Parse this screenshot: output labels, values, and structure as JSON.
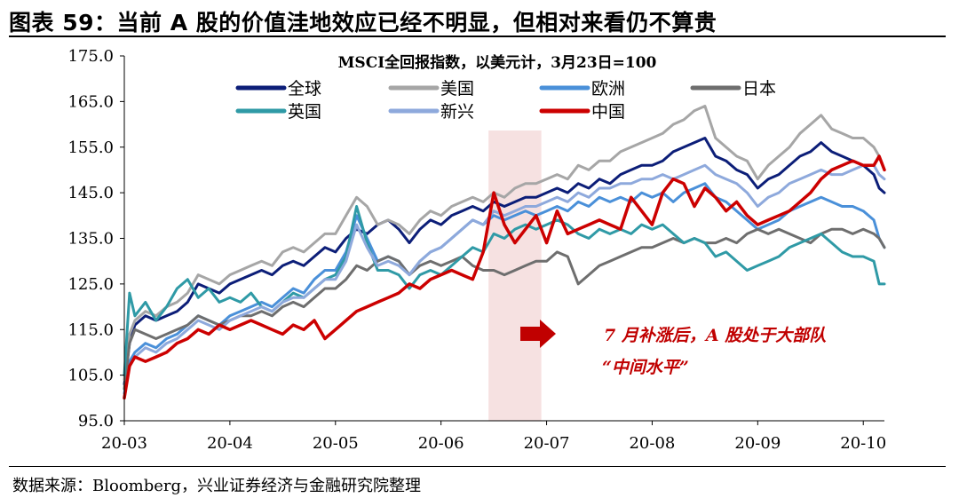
{
  "figure": {
    "title": "图表 59：当前 A 股的价值洼地效应已经不明显，但相对来看仍不算贵",
    "source": "数据来源：Bloomberg，兴业证券经济与金融研究院整理"
  },
  "chart_data": {
    "type": "line",
    "title": "MSCI全回报指数，以美元计，3月23日=100",
    "xlabel": "",
    "ylabel": "",
    "ylim": [
      95,
      175
    ],
    "yticks": [
      "95.0",
      "105.0",
      "115.0",
      "125.0",
      "135.0",
      "145.0",
      "155.0",
      "165.0",
      "175.0"
    ],
    "xlim": [
      0,
      7.2
    ],
    "xtick_values": [
      0,
      1,
      2,
      3,
      4,
      5,
      6,
      7
    ],
    "xticks": [
      "20-03",
      "20-04",
      "20-05",
      "20-06",
      "20-07",
      "20-08",
      "20-09",
      "20-10"
    ],
    "grid": false,
    "legend": "top, inside plot, 4 columns",
    "shaded_region": {
      "x_start": 3.45,
      "x_end": 3.95,
      "color": "#f6e1e1"
    },
    "annotation": {
      "line1": "7 月补涨后，A 股处于大部队",
      "line2": "“中间水平”",
      "color": "#c00000"
    },
    "series": [
      {
        "name": "全球",
        "color": "#0c1e78",
        "x": [
          0,
          0.05,
          0.1,
          0.2,
          0.3,
          0.4,
          0.5,
          0.6,
          0.7,
          0.8,
          0.9,
          1,
          1.1,
          1.2,
          1.3,
          1.4,
          1.5,
          1.6,
          1.7,
          1.8,
          1.9,
          2,
          2.1,
          2.2,
          2.3,
          2.4,
          2.5,
          2.6,
          2.7,
          2.8,
          2.9,
          3,
          3.1,
          3.2,
          3.3,
          3.4,
          3.5,
          3.6,
          3.7,
          3.8,
          3.9,
          4,
          4.1,
          4.2,
          4.3,
          4.4,
          4.5,
          4.6,
          4.7,
          4.8,
          4.9,
          5,
          5.1,
          5.2,
          5.3,
          5.4,
          5.5,
          5.6,
          5.7,
          5.8,
          5.9,
          6,
          6.1,
          6.2,
          6.3,
          6.4,
          6.5,
          6.6,
          6.7,
          6.8,
          6.9,
          7,
          7.1,
          7.15,
          7.2
        ],
        "values": [
          103,
          112,
          116,
          118,
          117,
          118,
          119,
          121,
          125,
          124,
          123,
          125,
          126,
          127,
          128,
          127,
          129,
          130,
          129,
          131,
          133,
          132,
          135,
          137,
          136,
          138,
          139,
          137,
          134,
          137,
          139,
          138,
          140,
          141,
          142,
          141,
          143,
          142,
          143,
          144,
          144,
          145,
          146,
          145,
          147,
          146,
          148,
          147,
          149,
          150,
          151,
          151,
          152,
          154,
          155,
          156,
          157,
          153,
          152,
          150,
          149,
          146,
          148,
          149,
          151,
          153,
          154,
          156,
          154,
          153,
          152,
          151,
          149,
          146,
          145
        ]
      },
      {
        "name": "美国",
        "color": "#a6a6a6",
        "x": [
          0,
          0.05,
          0.1,
          0.2,
          0.3,
          0.4,
          0.5,
          0.6,
          0.7,
          0.8,
          0.9,
          1,
          1.1,
          1.2,
          1.3,
          1.4,
          1.5,
          1.6,
          1.7,
          1.8,
          1.9,
          2,
          2.1,
          2.2,
          2.3,
          2.4,
          2.5,
          2.6,
          2.7,
          2.8,
          2.9,
          3,
          3.1,
          3.2,
          3.3,
          3.4,
          3.5,
          3.6,
          3.7,
          3.8,
          3.9,
          4,
          4.1,
          4.2,
          4.3,
          4.4,
          4.5,
          4.6,
          4.7,
          4.8,
          4.9,
          5,
          5.1,
          5.2,
          5.3,
          5.4,
          5.5,
          5.6,
          5.7,
          5.8,
          5.9,
          6,
          6.1,
          6.2,
          6.3,
          6.4,
          6.5,
          6.6,
          6.7,
          6.8,
          6.9,
          7,
          7.1,
          7.15,
          7.2
        ],
        "values": [
          104,
          114,
          117,
          119,
          118,
          120,
          121,
          123,
          127,
          126,
          125,
          127,
          128,
          129,
          130,
          129,
          132,
          133,
          132,
          134,
          136,
          136,
          140,
          144,
          142,
          138,
          139,
          138,
          136,
          139,
          141,
          140,
          142,
          143,
          144,
          143,
          145,
          144,
          146,
          147,
          147,
          148,
          149,
          148,
          151,
          150,
          152,
          152,
          154,
          155,
          156,
          157,
          158,
          160,
          161,
          163,
          164,
          157,
          155,
          153,
          152,
          148,
          151,
          153,
          155,
          158,
          160,
          162,
          159,
          158,
          157,
          157,
          155,
          153,
          150
        ]
      },
      {
        "name": "欧洲",
        "color": "#4a90d9",
        "x": [
          0,
          0.05,
          0.1,
          0.2,
          0.3,
          0.4,
          0.5,
          0.6,
          0.7,
          0.8,
          0.9,
          1,
          1.1,
          1.2,
          1.3,
          1.4,
          1.5,
          1.6,
          1.7,
          1.8,
          1.9,
          2,
          2.1,
          2.2,
          2.3,
          2.4,
          2.5,
          2.6,
          2.7,
          2.8,
          2.9,
          3,
          3.1,
          3.2,
          3.3,
          3.4,
          3.5,
          3.6,
          3.7,
          3.8,
          3.9,
          4,
          4.1,
          4.2,
          4.3,
          4.4,
          4.5,
          4.6,
          4.7,
          4.8,
          4.9,
          5,
          5.1,
          5.2,
          5.3,
          5.4,
          5.5,
          5.6,
          5.7,
          5.8,
          5.9,
          6,
          6.1,
          6.2,
          6.3,
          6.4,
          6.5,
          6.6,
          6.7,
          6.8,
          6.9,
          7,
          7.1,
          7.15,
          7.2
        ],
        "values": [
          101,
          108,
          110,
          112,
          111,
          113,
          114,
          116,
          118,
          117,
          116,
          118,
          119,
          120,
          121,
          120,
          122,
          124,
          123,
          126,
          128,
          128,
          132,
          140,
          135,
          130,
          131,
          130,
          127,
          130,
          132,
          133,
          135,
          137,
          139,
          138,
          140,
          139,
          140,
          141,
          140,
          141,
          142,
          141,
          143,
          142,
          144,
          143,
          144,
          143,
          145,
          144,
          145,
          143,
          145,
          146,
          147,
          144,
          143,
          141,
          139,
          137,
          138,
          139,
          141,
          142,
          143,
          144,
          143,
          142,
          142,
          141,
          139,
          135,
          133
        ]
      },
      {
        "name": "日本",
        "color": "#6e6e6e",
        "x": [
          0,
          0.05,
          0.1,
          0.2,
          0.3,
          0.4,
          0.5,
          0.6,
          0.7,
          0.8,
          0.9,
          1,
          1.1,
          1.2,
          1.3,
          1.4,
          1.5,
          1.6,
          1.7,
          1.8,
          1.9,
          2,
          2.1,
          2.2,
          2.3,
          2.4,
          2.5,
          2.6,
          2.7,
          2.8,
          2.9,
          3,
          3.1,
          3.2,
          3.3,
          3.4,
          3.5,
          3.6,
          3.7,
          3.8,
          3.9,
          4,
          4.1,
          4.2,
          4.3,
          4.4,
          4.5,
          4.6,
          4.7,
          4.8,
          4.9,
          5,
          5.1,
          5.2,
          5.3,
          5.4,
          5.5,
          5.6,
          5.7,
          5.8,
          5.9,
          6,
          6.1,
          6.2,
          6.3,
          6.4,
          6.5,
          6.6,
          6.7,
          6.8,
          6.9,
          7,
          7.1,
          7.15,
          7.2
        ],
        "values": [
          102,
          112,
          115,
          114,
          113,
          114,
          115,
          116,
          118,
          117,
          116,
          117,
          118,
          118,
          119,
          118,
          120,
          121,
          120,
          122,
          124,
          124,
          126,
          129,
          128,
          130,
          131,
          130,
          127,
          129,
          130,
          129,
          130,
          131,
          129,
          128,
          128,
          127,
          128,
          129,
          130,
          130,
          132,
          131,
          125,
          127,
          129,
          130,
          131,
          132,
          133,
          133,
          134,
          135,
          134,
          135,
          134,
          134,
          135,
          134,
          136,
          137,
          136,
          137,
          136,
          135,
          134,
          136,
          137,
          137,
          136,
          137,
          136,
          135,
          133
        ]
      },
      {
        "name": "英国",
        "color": "#2f9aa6",
        "x": [
          0,
          0.05,
          0.1,
          0.2,
          0.3,
          0.4,
          0.5,
          0.6,
          0.7,
          0.8,
          0.9,
          1,
          1.1,
          1.2,
          1.3,
          1.4,
          1.5,
          1.6,
          1.7,
          1.8,
          1.9,
          2,
          2.1,
          2.2,
          2.3,
          2.4,
          2.5,
          2.6,
          2.7,
          2.8,
          2.9,
          3,
          3.1,
          3.2,
          3.3,
          3.4,
          3.5,
          3.6,
          3.7,
          3.8,
          3.9,
          4,
          4.1,
          4.2,
          4.3,
          4.4,
          4.5,
          4.6,
          4.7,
          4.8,
          4.9,
          5,
          5.1,
          5.2,
          5.3,
          5.4,
          5.5,
          5.6,
          5.7,
          5.8,
          5.9,
          6,
          6.1,
          6.2,
          6.3,
          6.4,
          6.5,
          6.6,
          6.7,
          6.8,
          6.9,
          7,
          7.1,
          7.15,
          7.2
        ],
        "values": [
          105,
          123,
          118,
          121,
          117,
          120,
          124,
          126,
          122,
          124,
          121,
          122,
          121,
          123,
          120,
          119,
          121,
          123,
          122,
          124,
          126,
          127,
          131,
          142,
          134,
          128,
          128,
          127,
          124,
          127,
          128,
          127,
          129,
          131,
          133,
          132,
          136,
          135,
          137,
          138,
          137,
          138,
          139,
          138,
          136,
          135,
          137,
          136,
          137,
          136,
          138,
          137,
          138,
          136,
          134,
          135,
          134,
          131,
          132,
          130,
          128,
          129,
          130,
          131,
          133,
          134,
          135,
          136,
          134,
          132,
          131,
          131,
          130,
          125,
          125
        ]
      },
      {
        "name": "新兴",
        "color": "#8ea9dc",
        "x": [
          0,
          0.05,
          0.1,
          0.2,
          0.3,
          0.4,
          0.5,
          0.6,
          0.7,
          0.8,
          0.9,
          1,
          1.1,
          1.2,
          1.3,
          1.4,
          1.5,
          1.6,
          1.7,
          1.8,
          1.9,
          2,
          2.1,
          2.2,
          2.3,
          2.4,
          2.5,
          2.6,
          2.7,
          2.8,
          2.9,
          3,
          3.1,
          3.2,
          3.3,
          3.4,
          3.5,
          3.6,
          3.7,
          3.8,
          3.9,
          4,
          4.1,
          4.2,
          4.3,
          4.4,
          4.5,
          4.6,
          4.7,
          4.8,
          4.9,
          5,
          5.1,
          5.2,
          5.3,
          5.4,
          5.5,
          5.6,
          5.7,
          5.8,
          5.9,
          6,
          6.1,
          6.2,
          6.3,
          6.4,
          6.5,
          6.6,
          6.7,
          6.8,
          6.9,
          7,
          7.1,
          7.15,
          7.2
        ],
        "values": [
          100,
          107,
          109,
          111,
          110,
          112,
          113,
          115,
          117,
          116,
          115,
          117,
          118,
          119,
          120,
          119,
          121,
          122,
          122,
          124,
          126,
          126,
          130,
          138,
          133,
          129,
          130,
          129,
          127,
          130,
          132,
          133,
          135,
          137,
          139,
          138,
          141,
          140,
          141,
          142,
          142,
          143,
          144,
          143,
          145,
          144,
          146,
          146,
          147,
          147,
          148,
          148,
          149,
          148,
          149,
          150,
          151,
          149,
          148,
          147,
          145,
          142,
          144,
          145,
          147,
          148,
          149,
          150,
          149,
          149,
          150,
          151,
          151,
          149,
          148
        ]
      },
      {
        "name": "中国",
        "color": "#cc0000",
        "x": [
          0,
          0.05,
          0.1,
          0.2,
          0.3,
          0.4,
          0.5,
          0.6,
          0.7,
          0.8,
          0.9,
          1,
          1.1,
          1.2,
          1.3,
          1.4,
          1.5,
          1.6,
          1.7,
          1.8,
          1.9,
          2,
          2.1,
          2.2,
          2.3,
          2.4,
          2.5,
          2.6,
          2.7,
          2.8,
          2.9,
          3,
          3.1,
          3.2,
          3.3,
          3.4,
          3.5,
          3.6,
          3.7,
          3.8,
          3.9,
          4,
          4.1,
          4.2,
          4.3,
          4.4,
          4.5,
          4.6,
          4.7,
          4.8,
          4.9,
          5,
          5.1,
          5.2,
          5.3,
          5.4,
          5.5,
          5.6,
          5.7,
          5.8,
          5.9,
          6,
          6.1,
          6.2,
          6.3,
          6.4,
          6.5,
          6.6,
          6.7,
          6.8,
          6.9,
          7,
          7.1,
          7.15,
          7.2
        ],
        "values": [
          100,
          107,
          109,
          108,
          109,
          110,
          112,
          113,
          115,
          114,
          116,
          115,
          116,
          117,
          116,
          115,
          114,
          116,
          115,
          117,
          113,
          115,
          117,
          119,
          120,
          121,
          122,
          123,
          125,
          124,
          126,
          127,
          128,
          127,
          126,
          132,
          145,
          138,
          134,
          137,
          140,
          134,
          141,
          136,
          137,
          138,
          139,
          138,
          137,
          144,
          141,
          138,
          145,
          148,
          147,
          142,
          146,
          144,
          141,
          143,
          140,
          138,
          139,
          140,
          141,
          143,
          145,
          148,
          150,
          151,
          152,
          151,
          151,
          153,
          150
        ]
      }
    ]
  }
}
